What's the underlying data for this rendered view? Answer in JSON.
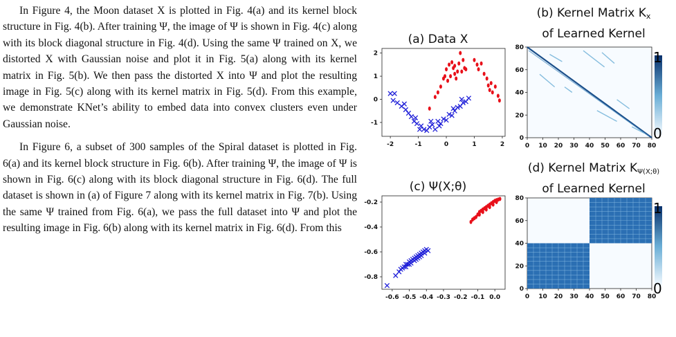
{
  "paragraphs": [
    "In Figure 4, the Moon dataset X is plotted in Fig. 4(a) and its kernel block structure in Fig. 4(b). After training Ψ, the image of Ψ is shown in Fig. 4(c) along with its block diagonal structure in Fig. 4(d). Using the same Ψ trained on X, we distorted X with Gaussian noise and plot it in Fig. 5(a) along with its kernel matrix in Fig. 5(b). We then pass the distorted X into Ψ and plot the resulting image in Fig. 5(c) along with its kernel matrix in Fig. 5(d). From this example, we demonstrate KNet’s ability to embed data into convex clusters even under Gaussian noise.",
    "In Figure 6, a subset of 300 samples of the Spiral dataset is plotted in Fig. 6(a) and its kernel block structure in Fig. 6(b). After training Ψ, the image of Ψ is shown in Fig. 6(c) along with its block diagonal structure in Fig. 6(d). The full dataset is shown in (a) of Figure 7 along with its kernel matrix in Fig. 7(b). Using the same Ψ trained from Fig. 6(a), we pass the full dataset into Ψ and plot the resulting image in Fig. 6(b) along with its kernel matrix in Fig. 6(d). From this"
  ],
  "figure": {
    "panel_a_title": "(a) Data X",
    "panel_b_title_1": "(b) Kernel Matrix K",
    "panel_b_sub": "x",
    "panel_b_title_2": "of Learned Kernel",
    "panel_c_title": "(c) Ψ(X;θ)",
    "panel_d_title_1": "(d) Kernel Matrix K",
    "panel_d_sub": "Ψ(X;θ)",
    "panel_d_title_2": "of Learned Kernel",
    "colorbar_max": "1",
    "colorbar_min": "0"
  },
  "chart_data": [
    {
      "type": "scatter",
      "title": "(a) Data X",
      "xlim": [
        -2.3,
        2.1
      ],
      "ylim": [
        -1.6,
        2.2
      ],
      "xticks": [
        "-2",
        "-1",
        "0",
        "1",
        "2"
      ],
      "yticks": [
        "-1",
        "0",
        "1",
        "2"
      ],
      "series": [
        {
          "marker": "x",
          "color": "#1f1fd8",
          "points": [
            [
              -2.0,
              0.25
            ],
            [
              -1.85,
              0.25
            ],
            [
              -1.9,
              -0.05
            ],
            [
              -1.75,
              -0.15
            ],
            [
              -1.6,
              -0.3
            ],
            [
              -1.45,
              -0.45
            ],
            [
              -1.35,
              -0.6
            ],
            [
              -1.25,
              -0.75
            ],
            [
              -1.15,
              -0.95
            ],
            [
              -1.05,
              -1.05
            ],
            [
              -0.9,
              -1.15
            ],
            [
              -0.8,
              -1.3
            ],
            [
              -0.7,
              -1.35
            ],
            [
              -0.6,
              -1.2
            ],
            [
              -0.5,
              -1.1
            ],
            [
              -0.4,
              -1.3
            ],
            [
              -0.3,
              -0.95
            ],
            [
              -0.2,
              -1.05
            ],
            [
              -0.1,
              -0.85
            ],
            [
              0.0,
              -0.9
            ],
            [
              0.1,
              -0.65
            ],
            [
              0.2,
              -0.7
            ],
            [
              0.3,
              -0.5
            ],
            [
              0.4,
              -0.35
            ],
            [
              0.5,
              -0.3
            ],
            [
              0.6,
              -0.15
            ],
            [
              0.7,
              -0.1
            ],
            [
              0.8,
              0.05
            ],
            [
              -1.1,
              -0.8
            ],
            [
              -0.95,
              -1.3
            ],
            [
              -0.55,
              -0.95
            ],
            [
              -0.25,
              -1.15
            ],
            [
              0.25,
              -0.4
            ],
            [
              -1.5,
              -0.2
            ],
            [
              0.55,
              0.0
            ]
          ]
        },
        {
          "marker": "dot",
          "color": "#e8101a",
          "points": [
            [
              -0.6,
              -0.4
            ],
            [
              -0.4,
              0.1
            ],
            [
              -0.3,
              0.3
            ],
            [
              -0.2,
              0.55
            ],
            [
              -0.1,
              0.9
            ],
            [
              0.0,
              1.3
            ],
            [
              0.05,
              0.8
            ],
            [
              0.1,
              1.5
            ],
            [
              0.15,
              1.0
            ],
            [
              0.2,
              1.6
            ],
            [
              0.25,
              1.35
            ],
            [
              0.3,
              1.45
            ],
            [
              0.35,
              0.9
            ],
            [
              0.4,
              1.2
            ],
            [
              0.45,
              1.55
            ],
            [
              0.5,
              2.0
            ],
            [
              0.55,
              1.2
            ],
            [
              0.6,
              1.7
            ],
            [
              0.65,
              1.35
            ],
            [
              0.7,
              1.3
            ],
            [
              1.0,
              1.7
            ],
            [
              1.1,
              1.5
            ],
            [
              1.15,
              1.3
            ],
            [
              1.25,
              1.55
            ],
            [
              1.35,
              1.1
            ],
            [
              1.45,
              0.9
            ],
            [
              1.5,
              0.6
            ],
            [
              1.55,
              0.4
            ],
            [
              1.65,
              0.3
            ],
            [
              1.75,
              0.55
            ],
            [
              1.85,
              0.15
            ],
            [
              1.9,
              -0.05
            ],
            [
              1.6,
              0.7
            ],
            [
              -0.05,
              1.0
            ],
            [
              0.3,
              1.1
            ]
          ]
        }
      ]
    },
    {
      "type": "heatmap",
      "title": "(b) Kernel Matrix Kx of Learned Kernel",
      "xlim": [
        0,
        80
      ],
      "ylim": [
        0,
        80
      ],
      "xticks": [
        "0",
        "10",
        "20",
        "30",
        "40",
        "50",
        "60",
        "70",
        "80"
      ],
      "yticks": [
        "0",
        "20",
        "40",
        "60",
        "80"
      ],
      "colorbar": {
        "min": 0,
        "max": 1
      },
      "description_values": "diagonal band with off-diagonal streaks"
    },
    {
      "type": "scatter",
      "title": "(c) Ψ(X;θ)",
      "xlim": [
        -0.66,
        0.06
      ],
      "ylim": [
        -0.9,
        -0.15
      ],
      "xticks": [
        "-0.6",
        "-0.5",
        "-0.4",
        "-0.3",
        "-0.2",
        "-0.1",
        "0.0"
      ],
      "yticks": [
        "-0.2",
        "-0.4",
        "-0.6",
        "-0.8"
      ],
      "series": [
        {
          "marker": "x",
          "color": "#1f1fd8",
          "points": [
            [
              -0.63,
              -0.87
            ],
            [
              -0.58,
              -0.79
            ],
            [
              -0.56,
              -0.76
            ],
            [
              -0.55,
              -0.74
            ],
            [
              -0.54,
              -0.73
            ],
            [
              -0.53,
              -0.72
            ],
            [
              -0.52,
              -0.7
            ],
            [
              -0.51,
              -0.7
            ],
            [
              -0.5,
              -0.68
            ],
            [
              -0.49,
              -0.67
            ],
            [
              -0.48,
              -0.66
            ],
            [
              -0.47,
              -0.65
            ],
            [
              -0.46,
              -0.64
            ],
            [
              -0.45,
              -0.63
            ],
            [
              -0.44,
              -0.62
            ],
            [
              -0.43,
              -0.61
            ],
            [
              -0.42,
              -0.6
            ],
            [
              -0.41,
              -0.59
            ],
            [
              -0.4,
              -0.58
            ],
            [
              -0.52,
              -0.72
            ],
            [
              -0.5,
              -0.7
            ],
            [
              -0.47,
              -0.67
            ],
            [
              -0.45,
              -0.65
            ],
            [
              -0.43,
              -0.63
            ],
            [
              -0.41,
              -0.61
            ],
            [
              -0.39,
              -0.59
            ],
            [
              -0.49,
              -0.69
            ],
            [
              -0.46,
              -0.66
            ],
            [
              -0.44,
              -0.64
            ]
          ]
        },
        {
          "marker": "dot",
          "color": "#e8101a",
          "points": [
            [
              -0.14,
              -0.36
            ],
            [
              -0.12,
              -0.33
            ],
            [
              -0.1,
              -0.3
            ],
            [
              -0.09,
              -0.28
            ],
            [
              -0.08,
              -0.27
            ],
            [
              -0.07,
              -0.26
            ],
            [
              -0.06,
              -0.25
            ],
            [
              -0.05,
              -0.24
            ],
            [
              -0.04,
              -0.23
            ],
            [
              -0.03,
              -0.22
            ],
            [
              -0.02,
              -0.21
            ],
            [
              -0.01,
              -0.2
            ],
            [
              0.0,
              -0.19
            ],
            [
              0.01,
              -0.185
            ],
            [
              0.02,
              -0.18
            ],
            [
              0.03,
              -0.175
            ],
            [
              -0.11,
              -0.32
            ],
            [
              -0.09,
              -0.3
            ],
            [
              -0.07,
              -0.28
            ],
            [
              -0.05,
              -0.26
            ],
            [
              -0.03,
              -0.24
            ],
            [
              -0.01,
              -0.22
            ],
            [
              0.01,
              -0.2
            ],
            [
              -0.13,
              -0.34
            ]
          ]
        }
      ]
    },
    {
      "type": "heatmap",
      "title": "(d) Kernel Matrix KΨ(X;θ) of Learned Kernel",
      "xlim": [
        0,
        80
      ],
      "ylim": [
        0,
        80
      ],
      "xticks": [
        "0",
        "10",
        "20",
        "30",
        "40",
        "50",
        "60",
        "70",
        "80"
      ],
      "yticks": [
        "0",
        "20",
        "40",
        "60",
        "80"
      ],
      "colorbar": {
        "min": 0,
        "max": 1
      },
      "blocks": [
        [
          0,
          40
        ],
        [
          40,
          80
        ]
      ]
    }
  ]
}
